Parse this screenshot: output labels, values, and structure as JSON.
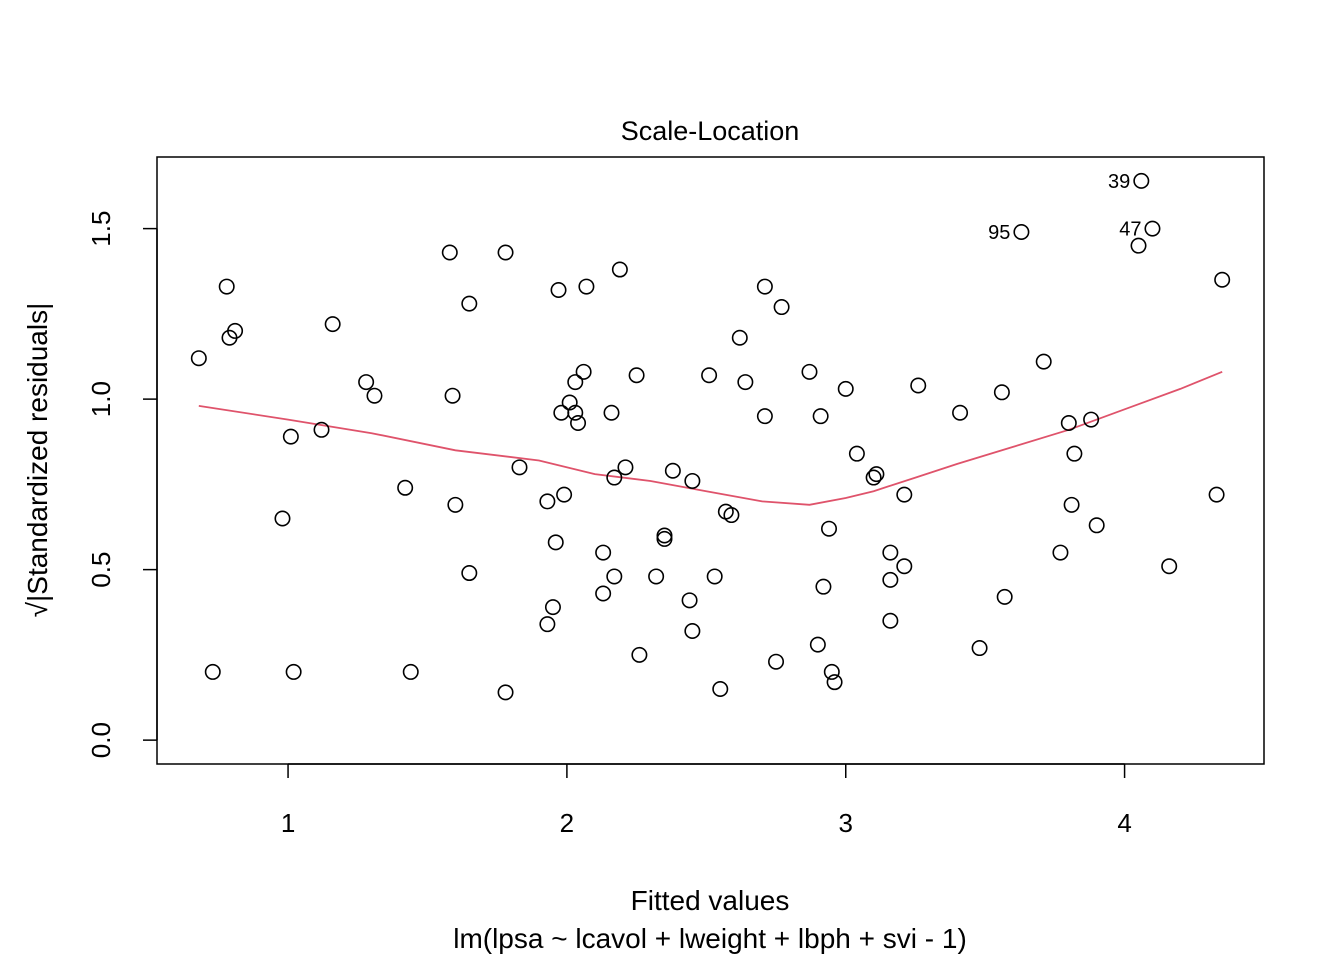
{
  "chart_data": {
    "type": "scatter",
    "title": "Scale-Location",
    "xlabel": "Fitted values",
    "subtitle": "lm(lpsa ~ lcavol + lweight + lbph + svi - 1)",
    "ylabel": "√|Standardized residuals|",
    "xlim": [
      0.53,
      4.5
    ],
    "ylim": [
      -0.07,
      1.71
    ],
    "x_ticks": [
      1,
      2,
      3,
      4
    ],
    "y_ticks": [
      0.0,
      0.5,
      1.0,
      1.5
    ],
    "x_tick_labels": [
      "1",
      "2",
      "3",
      "4"
    ],
    "y_tick_labels": [
      "0.0",
      "0.5",
      "1.0",
      "1.5"
    ],
    "grid": false,
    "points": [
      [
        0.68,
        1.12
      ],
      [
        0.73,
        0.2
      ],
      [
        0.78,
        1.33
      ],
      [
        0.79,
        1.18
      ],
      [
        0.81,
        1.2
      ],
      [
        0.98,
        0.65
      ],
      [
        1.01,
        0.89
      ],
      [
        1.02,
        0.2
      ],
      [
        1.12,
        0.91
      ],
      [
        1.16,
        1.22
      ],
      [
        1.28,
        1.05
      ],
      [
        1.31,
        1.01
      ],
      [
        1.42,
        0.74
      ],
      [
        1.44,
        0.2
      ],
      [
        1.58,
        1.43
      ],
      [
        1.59,
        1.01
      ],
      [
        1.6,
        0.69
      ],
      [
        1.65,
        0.49
      ],
      [
        1.65,
        1.28
      ],
      [
        1.78,
        1.43
      ],
      [
        1.78,
        0.14
      ],
      [
        1.83,
        0.8
      ],
      [
        1.93,
        0.34
      ],
      [
        1.93,
        0.7
      ],
      [
        1.95,
        0.39
      ],
      [
        1.96,
        0.58
      ],
      [
        1.97,
        1.32
      ],
      [
        1.98,
        0.96
      ],
      [
        1.99,
        0.72
      ],
      [
        2.01,
        0.99
      ],
      [
        2.03,
        0.96
      ],
      [
        2.03,
        1.05
      ],
      [
        2.04,
        0.93
      ],
      [
        2.06,
        1.08
      ],
      [
        2.07,
        1.33
      ],
      [
        2.13,
        0.55
      ],
      [
        2.13,
        0.43
      ],
      [
        2.16,
        0.96
      ],
      [
        2.17,
        0.48
      ],
      [
        2.17,
        0.77
      ],
      [
        2.19,
        1.38
      ],
      [
        2.21,
        0.8
      ],
      [
        2.25,
        1.07
      ],
      [
        2.26,
        0.25
      ],
      [
        2.32,
        0.48
      ],
      [
        2.35,
        0.6
      ],
      [
        2.35,
        0.59
      ],
      [
        2.38,
        0.79
      ],
      [
        2.44,
        0.41
      ],
      [
        2.45,
        0.76
      ],
      [
        2.45,
        0.32
      ],
      [
        2.51,
        1.07
      ],
      [
        2.53,
        0.48
      ],
      [
        2.55,
        0.15
      ],
      [
        2.57,
        0.67
      ],
      [
        2.59,
        0.66
      ],
      [
        2.62,
        1.18
      ],
      [
        2.64,
        1.05
      ],
      [
        2.71,
        1.33
      ],
      [
        2.71,
        0.95
      ],
      [
        2.75,
        0.23
      ],
      [
        2.77,
        1.27
      ],
      [
        2.87,
        1.08
      ],
      [
        2.9,
        0.28
      ],
      [
        2.91,
        0.95
      ],
      [
        2.92,
        0.45
      ],
      [
        2.94,
        0.62
      ],
      [
        2.95,
        0.2
      ],
      [
        2.96,
        0.17
      ],
      [
        3.0,
        1.03
      ],
      [
        3.04,
        0.84
      ],
      [
        3.1,
        0.77
      ],
      [
        3.11,
        0.78
      ],
      [
        3.16,
        0.35
      ],
      [
        3.16,
        0.47
      ],
      [
        3.16,
        0.55
      ],
      [
        3.21,
        0.51
      ],
      [
        3.21,
        0.72
      ],
      [
        3.26,
        1.04
      ],
      [
        3.41,
        0.96
      ],
      [
        3.48,
        0.27
      ],
      [
        3.56,
        1.02
      ],
      [
        3.57,
        0.42
      ],
      [
        3.63,
        1.49
      ],
      [
        3.71,
        1.11
      ],
      [
        3.77,
        0.55
      ],
      [
        3.8,
        0.93
      ],
      [
        3.81,
        0.69
      ],
      [
        3.82,
        0.84
      ],
      [
        3.88,
        0.94
      ],
      [
        3.9,
        0.63
      ],
      [
        4.05,
        1.45
      ],
      [
        4.06,
        1.64
      ],
      [
        4.1,
        1.5
      ],
      [
        4.16,
        0.51
      ],
      [
        4.33,
        0.72
      ],
      [
        4.35,
        1.35
      ]
    ],
    "labeled_points": [
      {
        "label": "39",
        "x": 4.06,
        "y": 1.64
      },
      {
        "label": "95",
        "x": 3.63,
        "y": 1.49
      },
      {
        "label": "47",
        "x": 4.1,
        "y": 1.5
      }
    ],
    "smooth": {
      "color": "#DF536B",
      "x": [
        0.68,
        1.0,
        1.3,
        1.6,
        1.9,
        2.1,
        2.3,
        2.5,
        2.7,
        2.87,
        3.0,
        3.1,
        3.25,
        3.4,
        3.6,
        3.8,
        4.0,
        4.2,
        4.35
      ],
      "y": [
        0.98,
        0.94,
        0.9,
        0.85,
        0.82,
        0.78,
        0.76,
        0.73,
        0.7,
        0.69,
        0.71,
        0.73,
        0.77,
        0.81,
        0.86,
        0.91,
        0.97,
        1.03,
        1.08
      ]
    },
    "point_color": "#000000"
  }
}
